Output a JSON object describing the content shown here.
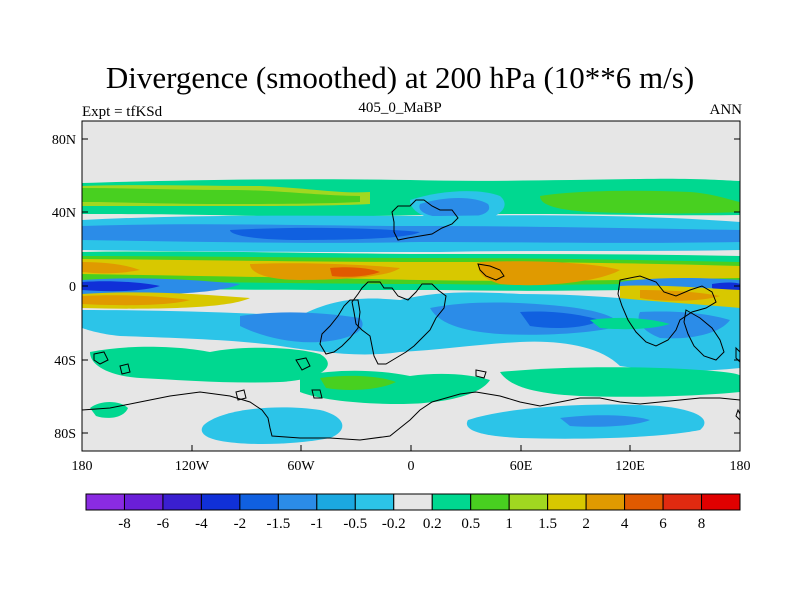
{
  "title": "Divergence (smoothed) at 200 hPa (10**6 m/s)",
  "left_label": "Expt = tfKSd",
  "center_label": "405_0_MaBP",
  "right_label": "ANN",
  "lat_ticks": [
    "80N",
    "40N",
    "0",
    "40S",
    "80S"
  ],
  "lon_ticks": [
    "180",
    "120W",
    "60W",
    "0",
    "60E",
    "120E",
    "180"
  ],
  "colorbar": {
    "labels": [
      "-8",
      "-6",
      "-4",
      "-2",
      "-1.5",
      "-1",
      "-0.5",
      "-0.2",
      "0.2",
      "0.5",
      "1",
      "1.5",
      "2",
      "4",
      "6",
      "8"
    ],
    "colors": [
      "#8a2be2",
      "#6a1fd8",
      "#3a1fd0",
      "#1030d8",
      "#1060e0",
      "#2b8ce8",
      "#1ba8e0",
      "#2cc4e8",
      "#e6e6e6",
      "#00d890",
      "#48d020",
      "#a0d820",
      "#d8c800",
      "#e09a00",
      "#e05a00",
      "#e02a10",
      "#e00000"
    ]
  },
  "map_colors": {
    "land": "#000000",
    "neutral": "#e6e6e6"
  }
}
